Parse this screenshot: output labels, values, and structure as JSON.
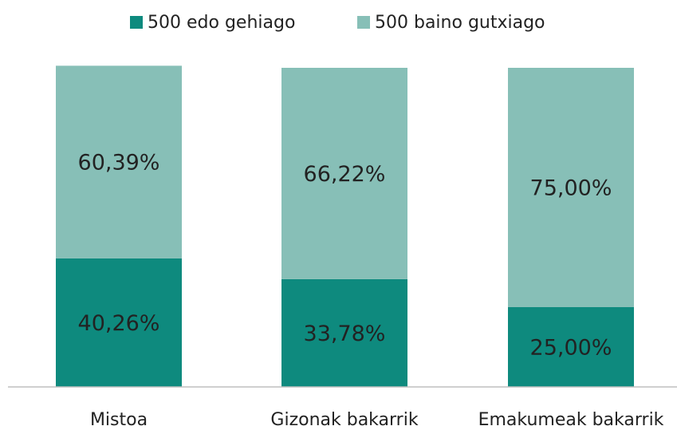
{
  "chart_data": {
    "type": "stacked_bar",
    "categories": [
      "Mistoa",
      "Gizonak bakarrik",
      "Emakumeak bakarrik"
    ],
    "series": [
      {
        "name": "500 edo gehiago",
        "color": "#0e8a7e",
        "values": [
          40.26,
          33.78,
          25.0
        ],
        "value_labels": [
          "40,26%",
          "33,78%",
          "25,00%"
        ]
      },
      {
        "name": "500 baino gutxiago",
        "color": "#87bfb7",
        "values": [
          60.39,
          66.22,
          75.0
        ],
        "value_labels": [
          "60,39%",
          "66,22%",
          "75,00%"
        ]
      }
    ],
    "ylim": [
      0,
      100
    ],
    "legend": "top"
  }
}
